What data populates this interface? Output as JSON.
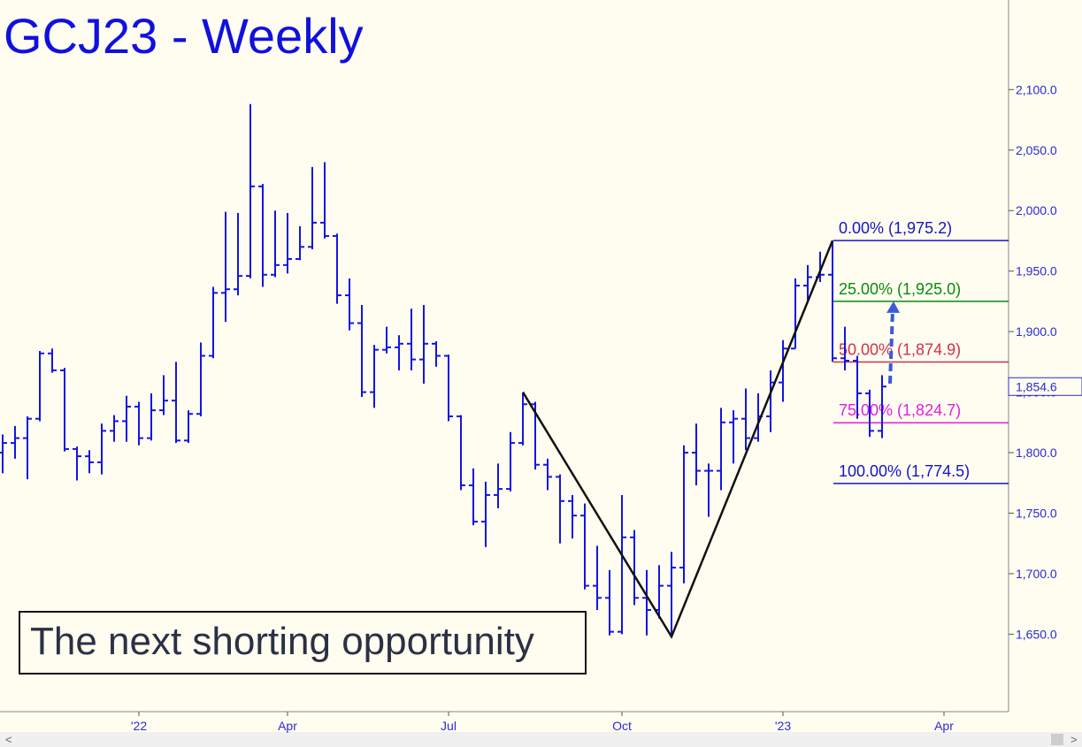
{
  "chart_data": {
    "type": "ohlc",
    "title": "GCJ23 - Weekly",
    "annotation": "The next shorting opportunity",
    "color": "#1414e6",
    "categories": [
      null,
      null,
      null,
      null,
      null,
      null,
      null,
      null,
      null,
      null,
      null,
      "'22",
      null,
      null,
      null,
      null,
      null,
      null,
      null,
      null,
      null,
      null,
      null,
      "Apr",
      null,
      null,
      null,
      null,
      null,
      null,
      null,
      null,
      null,
      null,
      null,
      null,
      "Jul",
      null,
      null,
      null,
      null,
      null,
      null,
      null,
      null,
      null,
      null,
      null,
      null,
      null,
      "Oct",
      null,
      null,
      null,
      null,
      null,
      null,
      null,
      null,
      null,
      null,
      null,
      null,
      "'23",
      null,
      null,
      null,
      null,
      null,
      null,
      null,
      null,
      null,
      null,
      null,
      null,
      "Apr",
      null,
      null,
      null,
      null,
      null
    ],
    "open": [
      1800,
      1808,
      1812,
      1828,
      1882,
      1868,
      1803,
      1797,
      1792,
      1818,
      1826,
      1838,
      1812,
      1835,
      1843,
      1810,
      1832,
      1880,
      1932,
      1935,
      1946,
      2020,
      1947,
      1955,
      1960,
      1970,
      1990,
      1979,
      1930,
      1907,
      1850,
      1885,
      1887,
      1890,
      1877,
      1890,
      1880,
      1830,
      1773,
      1743,
      1765,
      1770,
      1808,
      1840,
      1790,
      1780,
      1760,
      1748,
      1690,
      1680,
      1652,
      1730,
      1680,
      1670,
      1690,
      1705,
      1800,
      1785,
      1785,
      1825,
      1828,
      1812,
      1830,
      1858,
      1886,
      1938,
      1945,
      1947,
      1878,
      1876,
      1849,
      1818,
      null,
      null,
      null,
      null,
      null,
      null,
      null,
      null,
      null,
      null
    ],
    "high": [
      1815,
      1822,
      1830,
      1884,
      1886,
      1870,
      1805,
      1802,
      1824,
      1831,
      1847,
      1842,
      1849,
      1864,
      1875,
      1835,
      1891,
      1937,
      1999,
      1998,
      2088,
      2022,
      2000,
      1998,
      1987,
      2036,
      2040,
      1981,
      1944,
      1922,
      1889,
      1904,
      1897,
      1919,
      1922,
      1892,
      1881,
      1831,
      1787,
      1776,
      1791,
      1817,
      1849,
      1842,
      1795,
      1782,
      1765,
      1758,
      1723,
      1703,
      1765,
      1736,
      1703,
      1707,
      1718,
      1806,
      1824,
      1791,
      1837,
      1835,
      1853,
      1849,
      1868,
      1893,
      1944,
      1955,
      1966,
      1975.2,
      1904,
      1880,
      1852,
      1864,
      null,
      null,
      null,
      null,
      null,
      null,
      null,
      null,
      null,
      null
    ],
    "low": [
      1783,
      1795,
      1778,
      1826,
      1866,
      1801,
      1777,
      1783,
      1782,
      1809,
      1809,
      1806,
      1810,
      1831,
      1808,
      1808,
      1830,
      1878,
      1908,
      1930,
      1944,
      1937,
      1945,
      1948,
      1959,
      1968,
      1977,
      1923,
      1901,
      1846,
      1837,
      1882,
      1868,
      1868,
      1857,
      1871,
      1826,
      1769,
      1740,
      1722,
      1754,
      1768,
      1806,
      1786,
      1769,
      1725,
      1729,
      1687,
      1670,
      1649,
      1650,
      1674,
      1649,
      1663,
      1648,
      1692,
      1773,
      1747,
      1769,
      1791,
      1802,
      1809,
      1817,
      1842,
      1886,
      1926,
      1941,
      1875,
      1868,
      1828,
      1813,
      1812,
      null,
      null,
      null,
      null,
      null,
      null,
      null,
      null,
      null,
      null
    ],
    "close": [
      1808,
      1812,
      1828,
      1882,
      1868,
      1803,
      1797,
      1792,
      1818,
      1826,
      1838,
      1812,
      1835,
      1843,
      1810,
      1832,
      1880,
      1932,
      1935,
      1946,
      2020,
      1947,
      1955,
      1960,
      1970,
      1990,
      1979,
      1930,
      1907,
      1850,
      1885,
      1887,
      1890,
      1877,
      1890,
      1880,
      1830,
      1773,
      1743,
      1765,
      1770,
      1808,
      1840,
      1790,
      1780,
      1760,
      1748,
      1690,
      1680,
      1652,
      1730,
      1680,
      1670,
      1690,
      1705,
      1800,
      1785,
      1785,
      1825,
      1828,
      1812,
      1830,
      1858,
      1886,
      1938,
      1945,
      1947,
      1878,
      1876,
      1849,
      1818,
      1854.6,
      null,
      null,
      null,
      null,
      null,
      null,
      null,
      null,
      null,
      null
    ],
    "ylim": [
      1586,
      2174
    ],
    "yticks": [
      {
        "value": 1650,
        "label": "1,650.0"
      },
      {
        "value": 1700,
        "label": "1,700.0"
      },
      {
        "value": 1750,
        "label": "1,750.0"
      },
      {
        "value": 1800,
        "label": "1,800.0"
      },
      {
        "value": 1850,
        "label": "1,850.0"
      },
      {
        "value": 1900,
        "label": "1,900.0"
      },
      {
        "value": 1950,
        "label": "1,950.0"
      },
      {
        "value": 2000,
        "label": "2,000.0"
      },
      {
        "value": 2050,
        "label": "2,050.0"
      },
      {
        "value": 2100,
        "label": "2,100.0"
      }
    ],
    "last_price": {
      "value": 1854.6,
      "label": "1,854.6"
    },
    "fib_levels": [
      {
        "label": "0.00% (1,975.2)",
        "value": 1975.2,
        "color": "#1414c8"
      },
      {
        "label": "25.00% (1,925.0)",
        "value": 1925.0,
        "color": "#0a8a0a"
      },
      {
        "label": "50.00% (1,874.9)",
        "value": 1874.9,
        "color": "#d0304a"
      },
      {
        "label": "75.00% (1,824.7)",
        "value": 1824.7,
        "color": "#e020e0"
      },
      {
        "label": "100.00% (1,774.5)",
        "value": 1774.5,
        "color": "#1414c8"
      }
    ],
    "zigzag": {
      "x": [
        42,
        54,
        67
      ],
      "values": [
        1850,
        1648,
        1975.2
      ]
    },
    "arrow": {
      "from": 1857,
      "to": 1925,
      "color": "#3a5ad8"
    }
  }
}
